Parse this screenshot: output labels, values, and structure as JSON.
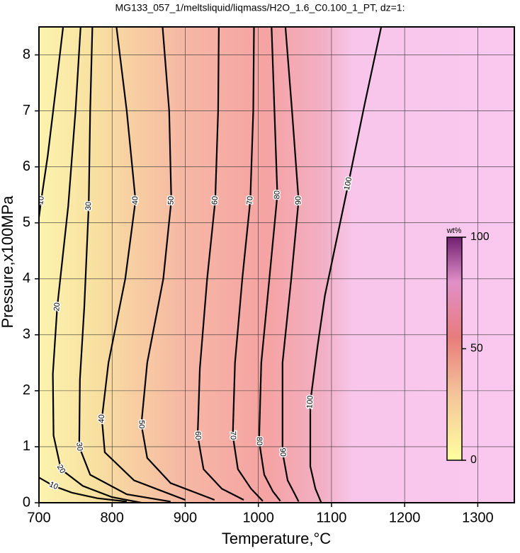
{
  "chart_data": {
    "type": "contour",
    "title": "MG133_057_1/meltsliquid/liqmass/H2O_1.6_C0.100_1_PT, dz=1:",
    "xlabel": "Temperature,°C",
    "ylabel": "Pressure,x100MPa",
    "xlim": [
      700,
      1350
    ],
    "ylim": [
      0,
      8.5
    ],
    "xticks": [
      700,
      800,
      900,
      1000,
      1100,
      1200,
      1300
    ],
    "yticks": [
      0,
      1,
      2,
      3,
      4,
      5,
      6,
      7,
      8
    ],
    "grid": true,
    "contours": [
      {
        "level": 10,
        "x": [
          733,
          724,
          712,
          703,
          700,
          null,
          700,
          720,
          745,
          780,
          820
        ],
        "y": [
          8.5,
          7.5,
          6.2,
          5.4,
          5.1,
          null,
          0.45,
          0.3,
          0.18,
          0.08,
          0.02
        ]
      },
      {
        "level": 20,
        "x": [
          757,
          750,
          740,
          725,
          719,
          720,
          730,
          760,
          800,
          840
        ],
        "y": [
          8.5,
          7,
          5.3,
          3.5,
          2.3,
          1.2,
          0.6,
          0.3,
          0.1,
          0
        ]
      },
      {
        "level": 30,
        "x": [
          773,
          770,
          768,
          762,
          756,
          755,
          770,
          820,
          880
        ],
        "y": [
          8.5,
          7,
          5.3,
          3.5,
          2.2,
          1.0,
          0.5,
          0.15,
          0.02
        ]
      },
      {
        "level": 40,
        "x": [
          806,
          820,
          832,
          818,
          795,
          786,
          790,
          830,
          900
        ],
        "y": [
          8.5,
          7,
          5.4,
          4,
          2.5,
          1.5,
          0.9,
          0.4,
          0.05
        ]
      },
      {
        "level": 50,
        "x": [
          869,
          878,
          881,
          870,
          848,
          840,
          848,
          880,
          940
        ],
        "y": [
          8.5,
          7,
          5.4,
          4,
          2.5,
          1.4,
          0.8,
          0.35,
          0.05
        ]
      },
      {
        "level": 60,
        "x": [
          946,
          945,
          941,
          930,
          920,
          917,
          925,
          950,
          980
        ],
        "y": [
          8.5,
          7,
          5.4,
          4,
          2.4,
          1.2,
          0.6,
          0.25,
          0.05
        ]
      },
      {
        "level": 70,
        "x": [
          994,
          993,
          989,
          978,
          968,
          965,
          972,
          990,
          1006
        ],
        "y": [
          8.5,
          7,
          5.4,
          4,
          2.5,
          1.2,
          0.6,
          0.25,
          0.03
        ]
      },
      {
        "level": 80,
        "x": [
          1018,
          1022,
          1026,
          1015,
          1004,
          1001,
          1008,
          1020,
          1030
        ],
        "y": [
          8.5,
          7,
          5.5,
          4,
          2.5,
          1.1,
          0.5,
          0.2,
          0.03
        ]
      },
      {
        "level": 90,
        "x": [
          1037,
          1046,
          1055,
          1045,
          1033,
          1033,
          1040,
          1050,
          1055
        ],
        "y": [
          8.5,
          7,
          5.4,
          4,
          2.5,
          0.9,
          0.4,
          0.15,
          0.02
        ]
      },
      {
        "level": 100,
        "x": [
          1168,
          1145,
          1123,
          1091,
          1081,
          1071,
          1071,
          1078,
          1086
        ],
        "y": [
          8.5,
          7.1,
          5.7,
          3.7,
          2.8,
          1.8,
          0.65,
          0.25,
          0
        ]
      }
    ],
    "colorbar": {
      "title": "wt%",
      "lim": [
        0,
        100
      ],
      "ticks": [
        0,
        50,
        100
      ]
    }
  }
}
